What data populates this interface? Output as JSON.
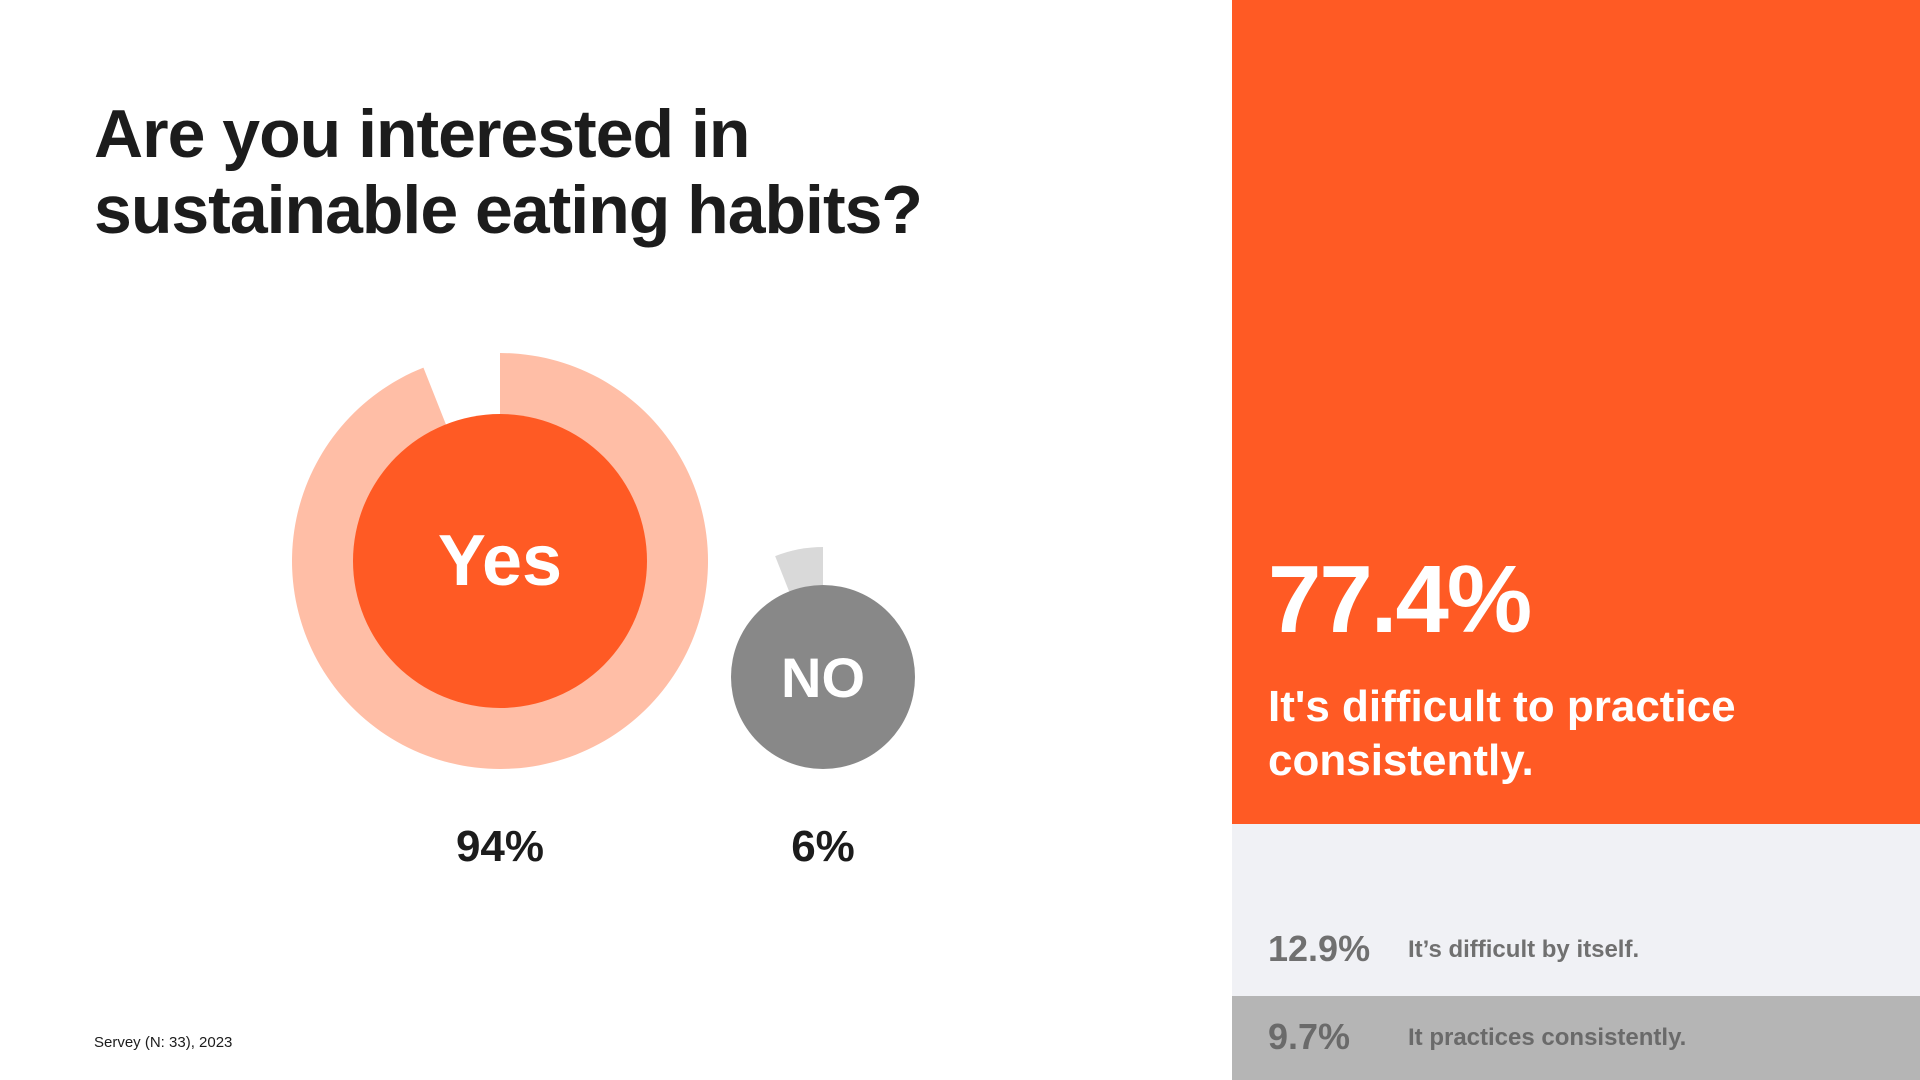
{
  "title_lines": [
    "Are you interested in",
    "sustainable eating habits?"
  ],
  "chart_data": {
    "type": "pie",
    "title": "Are you interested in sustainable eating habits?",
    "categories": [
      "Yes",
      "NO"
    ],
    "values": [
      94,
      6
    ],
    "labels": [
      "94%",
      "6%"
    ],
    "colors": {
      "yes_ring": "#ffbea6",
      "yes_core": "#ff5a24",
      "no_ring": "#d9d9d9",
      "no_core": "#888888"
    }
  },
  "source": "Servey (N: 33), 2023",
  "side_panel": {
    "headline_value": "77.4%",
    "headline_text": "It's difficult to practice consistently.",
    "rows": [
      {
        "value": "12.9%",
        "text": "It’s difficult by itself."
      },
      {
        "value": "9.7%",
        "text": "It practices consistently."
      }
    ],
    "colors": {
      "accent": "#ff5a24",
      "row_light": "#f0f1f5",
      "row_dark": "#b5b5b5"
    }
  }
}
